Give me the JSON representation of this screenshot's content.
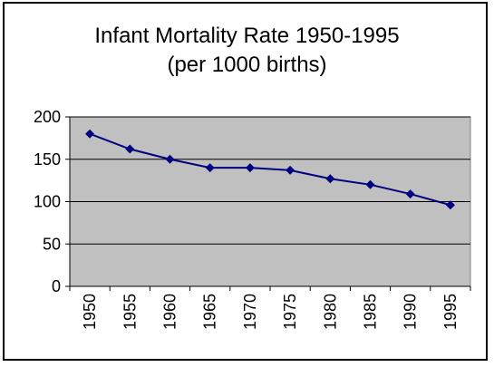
{
  "chart_data": {
    "type": "line",
    "title_line1": "Infant Mortality Rate 1950-1995",
    "title_line2": "(per 1000 births)",
    "categories": [
      "1950",
      "1955",
      "1960",
      "1965",
      "1970",
      "1975",
      "1980",
      "1985",
      "1990",
      "1995"
    ],
    "series": [
      {
        "values": [
          180,
          162,
          150,
          140,
          140,
          137,
          127,
          120,
          109,
          96
        ]
      }
    ],
    "ylim": [
      0,
      200
    ],
    "yticks": [
      0,
      50,
      100,
      150,
      200
    ],
    "grid": true,
    "plot_background": "#c0c0c0",
    "line_color": "#000080",
    "legend": "none"
  }
}
